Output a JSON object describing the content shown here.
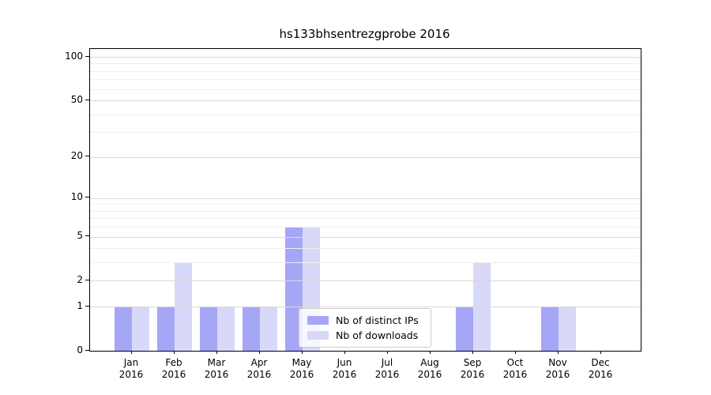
{
  "chart_data": {
    "type": "bar",
    "title": "hs133bhsentrezgprobe 2016",
    "year": "2016",
    "categories": [
      "Jan",
      "Feb",
      "Mar",
      "Apr",
      "May",
      "Jun",
      "Jul",
      "Aug",
      "Sep",
      "Oct",
      "Nov",
      "Dec"
    ],
    "series": [
      {
        "name": "Nb of distinct IPs",
        "color": "#a6a6f7",
        "values": [
          1,
          1,
          1,
          1,
          6,
          0,
          0,
          0,
          1,
          0,
          1,
          0
        ]
      },
      {
        "name": "Nb of downloads",
        "color": "#d8d8f8",
        "values": [
          1,
          3,
          1,
          1,
          6,
          0,
          0,
          0,
          3,
          0,
          1,
          0
        ]
      }
    ],
    "yticks": [
      0,
      1,
      2,
      5,
      10,
      20,
      50,
      100
    ],
    "minor_gridline_values": [
      3,
      4,
      6,
      7,
      8,
      9,
      30,
      40,
      60,
      70,
      80,
      90
    ],
    "scale": "log1p",
    "ylim": [
      0,
      113
    ],
    "xlabel": "",
    "ylabel": "",
    "grid": "horizontal-major-and-minor",
    "legend_position": "lower-center",
    "colors": {
      "axis": "#000000",
      "major_grid": "#d9d9d9",
      "minor_grid": "#efefef",
      "background": "#ffffff"
    }
  }
}
